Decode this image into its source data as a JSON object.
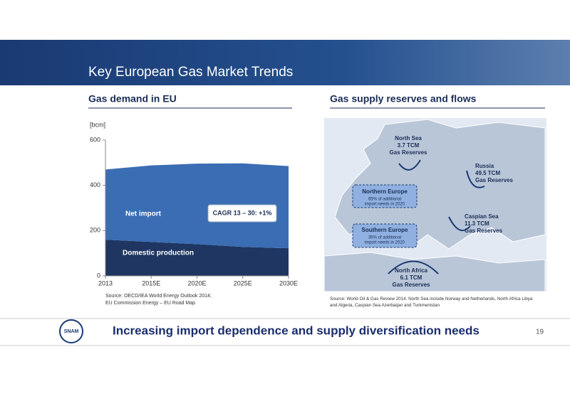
{
  "header": {
    "title": "Key European Gas Market Trends"
  },
  "left": {
    "heading": "Gas demand in EU",
    "source": [
      "Source: OECD/IEA World Energy Outlook 2014;",
      "EU Commission Energy – EU Road Map"
    ]
  },
  "chart_data": {
    "type": "stacked-area",
    "y_label": "[bcm]",
    "categories": [
      "2013",
      "2015E",
      "2020E",
      "2025E",
      "2030E"
    ],
    "series": [
      {
        "name": "Domestic production",
        "color": "#1e3661",
        "values": [
          160,
          150,
          140,
          128,
          122
        ]
      },
      {
        "name": "Net import",
        "color": "#3a6db3",
        "values": [
          310,
          338,
          356,
          369,
          363
        ]
      }
    ],
    "ylim": [
      0,
      600
    ],
    "yticks": [
      0,
      200,
      400,
      600
    ],
    "annotation": "CAGR 13 – 30: +1%"
  },
  "right": {
    "heading": "Gas supply reserves and flows",
    "map_labels": [
      {
        "lines": [
          "North Sea",
          "3.7 TCM",
          "Gas Reserves"
        ]
      },
      {
        "lines": [
          "Russia",
          "49.5 TCM",
          "Gas Reserves"
        ]
      },
      {
        "lines": [
          "Caspian Sea",
          "11.3 TCM",
          "Gas Reserves"
        ]
      },
      {
        "lines": [
          "North Africa",
          "6.1 TCM",
          "Gas Reserves"
        ]
      }
    ],
    "boxes": [
      {
        "title": "Northern Europe",
        "text": [
          "65% of additional",
          "import needs in 2020"
        ]
      },
      {
        "title": "Southern Europe",
        "text": [
          "35% of additional",
          "import needs in 2020"
        ]
      }
    ],
    "source": [
      "Source: World Oil & Gas Review 2014. North Sea include Norway and Netherlands, North Africa Libya",
      "and Algeria, Caspian Sea Azerbaijan and Turkmenistan"
    ]
  },
  "footer": {
    "logo": "SNAM",
    "message": "Increasing import dependence and supply diversification needs",
    "page": "19"
  }
}
